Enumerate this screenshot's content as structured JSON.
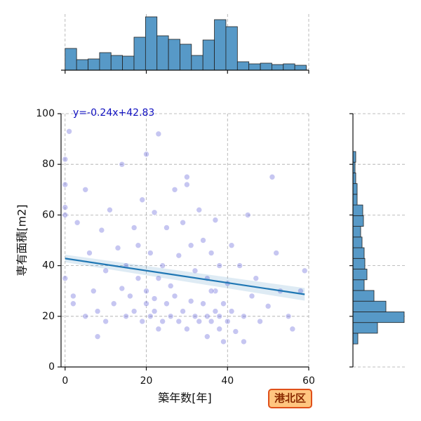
{
  "badge": "港北区",
  "chart_data": [
    {
      "type": "scatter",
      "xlabel": "築年数[年]",
      "ylabel": "専有面積[m2]",
      "xlim": [
        -1,
        60
      ],
      "ylim": [
        0,
        100
      ],
      "xticks": [
        0,
        20,
        40,
        60
      ],
      "yticks": [
        0,
        20,
        40,
        60,
        80,
        100
      ],
      "grid": true,
      "color": "#5c5cd6",
      "x": [
        0,
        0,
        0,
        0,
        0,
        1,
        2,
        3,
        5,
        5,
        6,
        7,
        8,
        9,
        10,
        10,
        11,
        12,
        13,
        14,
        15,
        15,
        16,
        17,
        17,
        18,
        18,
        19,
        19,
        20,
        20,
        20,
        21,
        21,
        22,
        22,
        22,
        23,
        23,
        24,
        24,
        25,
        25,
        26,
        26,
        27,
        27,
        28,
        28,
        29,
        29,
        30,
        30,
        31,
        31,
        32,
        32,
        33,
        33,
        34,
        34,
        35,
        35,
        35,
        36,
        36,
        37,
        37,
        37,
        38,
        38,
        38,
        39,
        39,
        40,
        40,
        41,
        41,
        42,
        43,
        44,
        45,
        46,
        47,
        48,
        50,
        51,
        52,
        53,
        55,
        56,
        58,
        59,
        2,
        8,
        14,
        23,
        30,
        36,
        44
      ],
      "y": [
        60,
        63,
        72,
        35,
        82,
        93,
        25,
        57,
        20,
        70,
        45,
        30,
        22,
        54,
        38,
        18,
        62,
        25,
        47,
        31,
        20,
        40,
        28,
        55,
        22,
        35,
        48,
        18,
        66,
        25,
        30,
        84,
        20,
        45,
        22,
        27,
        61,
        35,
        92,
        18,
        40,
        25,
        55,
        20,
        32,
        70,
        28,
        18,
        44,
        22,
        57,
        15,
        75,
        26,
        48,
        20,
        38,
        18,
        62,
        25,
        50,
        12,
        20,
        35,
        18,
        45,
        22,
        30,
        58,
        15,
        20,
        40,
        10,
        25,
        18,
        33,
        22,
        48,
        14,
        40,
        20,
        60,
        28,
        35,
        18,
        24,
        75,
        45,
        30,
        20,
        15,
        30,
        38,
        28,
        12,
        80,
        15,
        72,
        30,
        10
      ],
      "regression": {
        "slope": -0.24,
        "intercept": 42.83,
        "label": "y=-0.24x+42.83",
        "color": "#1f77b4",
        "label_color": "#1010c0"
      }
    },
    {
      "type": "histogram",
      "orientation": "vertical",
      "color": "#5799c7",
      "bins": [
        0,
        2.83,
        5.66,
        8.49,
        11.31,
        14.14,
        16.97,
        19.8,
        22.63,
        25.46,
        28.29,
        31.11,
        33.94,
        36.77,
        39.6,
        42.43,
        45.26,
        48.09,
        50.91,
        53.74,
        56.57,
        59.4
      ],
      "counts": [
        31,
        15,
        16,
        25,
        21,
        20,
        47,
        76,
        49,
        44,
        37,
        21,
        43,
        72,
        62,
        12,
        9,
        10,
        8,
        9,
        7
      ],
      "xlim": [
        -1,
        60
      ],
      "xticks": [
        0,
        20,
        40,
        60
      ],
      "ylim": [
        0,
        80
      ],
      "grid": true
    },
    {
      "type": "histogram",
      "orientation": "horizontal",
      "color": "#5799c7",
      "bins": [
        9.1,
        13.32,
        17.54,
        21.76,
        25.98,
        30.2,
        34.42,
        38.64,
        42.86,
        47.08,
        51.3,
        55.52,
        59.74,
        63.96,
        68.18,
        72.4,
        76.62,
        80.84,
        85.06
      ],
      "counts": [
        7,
        35,
        73,
        47,
        30,
        16,
        20,
        17,
        16,
        13,
        11,
        15,
        14,
        6,
        6,
        4,
        3,
        4
      ],
      "ylim": [
        0,
        100
      ],
      "yticks": [
        0,
        20,
        40,
        60,
        80,
        100
      ],
      "xlim": [
        0,
        75
      ],
      "grid": true
    }
  ]
}
